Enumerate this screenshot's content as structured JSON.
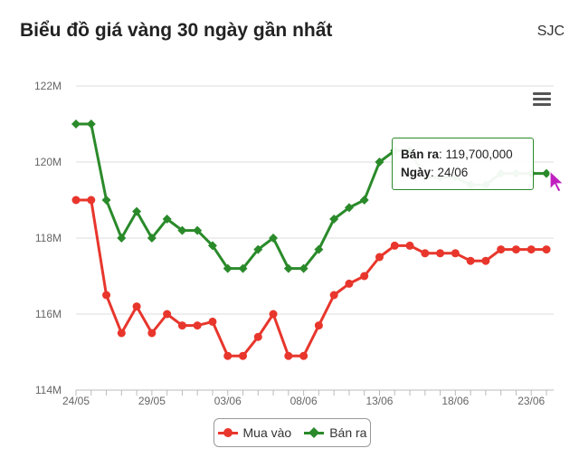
{
  "header": {
    "title": "Biểu đồ giá vàng 30 ngày gần nhất",
    "brand": "SJC"
  },
  "chart_data": {
    "type": "line",
    "y_unit": "VND",
    "ylim": [
      114000000,
      122000000
    ],
    "yticks": [
      114000000,
      116000000,
      118000000,
      120000000,
      122000000
    ],
    "ytick_labels": [
      "114M",
      "116M",
      "118M",
      "120M",
      "122M"
    ],
    "x": [
      "24/05",
      "25/05",
      "26/05",
      "27/05",
      "28/05",
      "29/05",
      "30/05",
      "31/05",
      "01/06",
      "02/06",
      "03/06",
      "04/06",
      "05/06",
      "06/06",
      "07/06",
      "08/06",
      "09/06",
      "10/06",
      "11/06",
      "12/06",
      "13/06",
      "14/06",
      "15/06",
      "16/06",
      "17/06",
      "18/06",
      "19/06",
      "20/06",
      "21/06",
      "22/06",
      "23/06",
      "24/06"
    ],
    "xtick_labels": [
      "24/05",
      "29/05",
      "03/06",
      "08/06",
      "13/06",
      "18/06",
      "23/06"
    ],
    "grid": true,
    "legend_position": "bottom-center",
    "series": [
      {
        "name": "Mua vào",
        "color": "#e8362c",
        "marker": "circle",
        "values": [
          119000000,
          119000000,
          116500000,
          115500000,
          116200000,
          115500000,
          116000000,
          115700000,
          115700000,
          115800000,
          114900000,
          114900000,
          115400000,
          116000000,
          114900000,
          114900000,
          115700000,
          116500000,
          116800000,
          117000000,
          117500000,
          117800000,
          117800000,
          117600000,
          117600000,
          117600000,
          117400000,
          117400000,
          117700000,
          117700000,
          117700000,
          117700000
        ]
      },
      {
        "name": "Bán ra",
        "color": "#2a8a2a",
        "marker": "diamond",
        "values": [
          121000000,
          121000000,
          119000000,
          118000000,
          118700000,
          118000000,
          118500000,
          118200000,
          118200000,
          117800000,
          117200000,
          117200000,
          117700000,
          118000000,
          117200000,
          117200000,
          117700000,
          118500000,
          118800000,
          119000000,
          120000000,
          120300000,
          120300000,
          119600000,
          119600000,
          119600000,
          119400000,
          119400000,
          119700000,
          119700000,
          119700000,
          119700000
        ]
      }
    ],
    "tooltip": {
      "series_label": "Bán ra",
      "value_text": "119,700,000",
      "date_label": "Ngày",
      "date_value": "24/06"
    }
  },
  "icons": {
    "menu": "hamburger-menu-icon",
    "cursor": "pointer-cursor-icon"
  }
}
